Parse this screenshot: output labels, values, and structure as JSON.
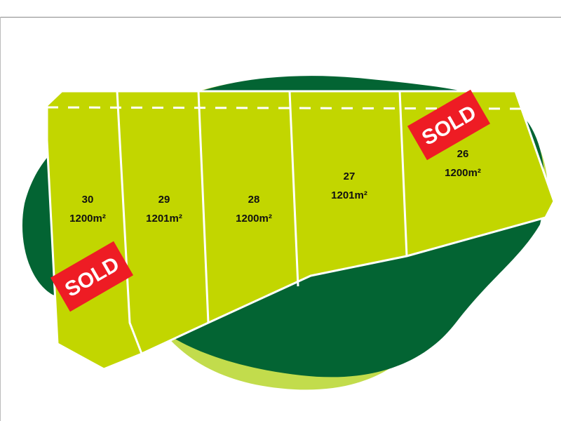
{
  "colors": {
    "lot_fill": "#c2d600",
    "blob_dark": "#036433",
    "blob_light": "#c2dc4c",
    "sold_badge": "#ee1c24",
    "boundary": "#ffffff"
  },
  "lots": [
    {
      "number": "30",
      "area": "1200m²",
      "sold": true
    },
    {
      "number": "29",
      "area": "1201m²",
      "sold": false
    },
    {
      "number": "28",
      "area": "1200m²",
      "sold": false
    },
    {
      "number": "27",
      "area": "1201m²",
      "sold": false
    },
    {
      "number": "26",
      "area": "1200m²",
      "sold": true
    }
  ],
  "sold_label": "SOLD"
}
